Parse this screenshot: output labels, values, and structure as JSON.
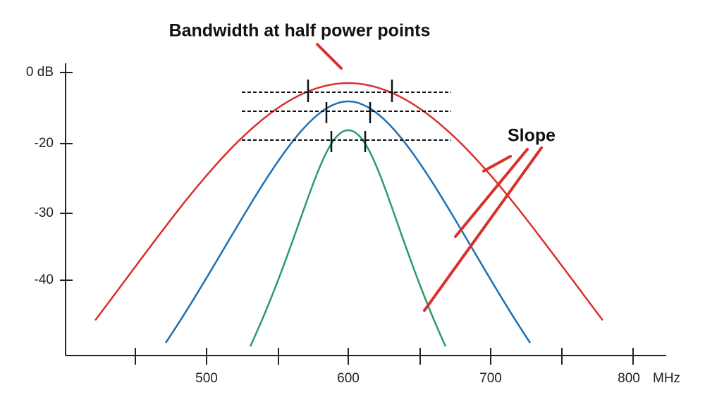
{
  "title": "Bandwidth at half power points",
  "y_axis": {
    "labels": [
      "0 dB",
      "-20",
      "-30",
      "-40"
    ]
  },
  "x_axis": {
    "labels": [
      "500",
      "600",
      "700",
      "800"
    ],
    "unit": "MHz"
  },
  "annotation": "Slope"
}
